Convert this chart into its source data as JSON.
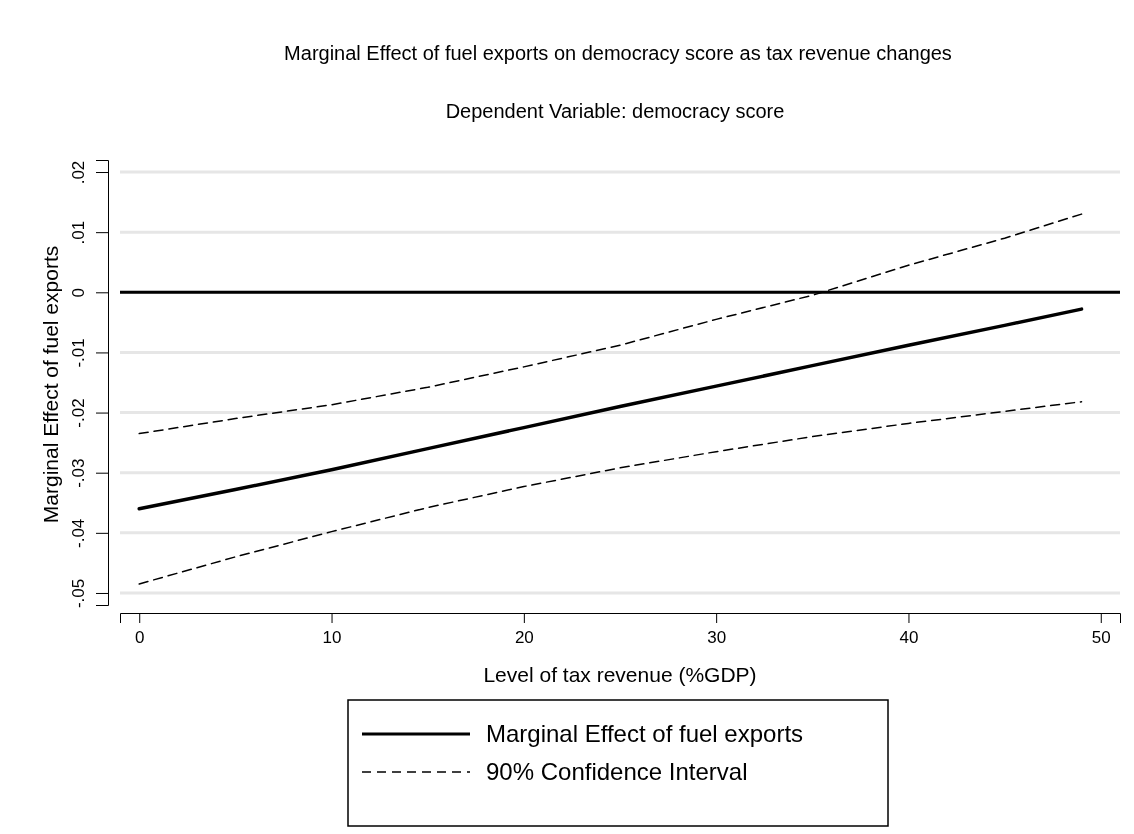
{
  "chart_data": {
    "type": "line",
    "title": "Marginal Effect of fuel exports on democracy score as tax revenue changes",
    "subtitle": "Dependent Variable: democracy score",
    "xlabel": "Level of tax revenue (%GDP)",
    "ylabel": "Marginal Effect of fuel exports",
    "x": [
      0,
      5,
      10,
      15,
      20,
      25,
      30,
      35,
      40,
      45,
      49
    ],
    "series": [
      {
        "name": "Marginal Effect of fuel exports",
        "color": "#000000",
        "line_style": "solid",
        "values": [
          -0.036,
          -0.0328,
          -0.0295,
          -0.026,
          -0.0225,
          -0.019,
          -0.0156,
          -0.0122,
          -0.0088,
          -0.0055,
          -0.0028
        ]
      },
      {
        "name": "90% Confidence Interval",
        "color": "#000000",
        "line_style": "dashed",
        "values": [
          -0.0235,
          -0.021,
          -0.0187,
          -0.0158,
          -0.0124,
          -0.0088,
          -0.0045,
          -0.0005,
          0.0045,
          0.009,
          0.013
        ]
      },
      {
        "color": "#000000",
        "line_style": "dashed",
        "values": [
          -0.0485,
          -0.044,
          -0.0398,
          -0.0358,
          -0.0323,
          -0.0292,
          -0.0265,
          -0.024,
          -0.0218,
          -0.0198,
          -0.0182
        ]
      }
    ],
    "xlim": [
      -1,
      51
    ],
    "xticks": [
      0,
      10,
      20,
      30,
      40,
      50
    ],
    "ylim": [
      -0.052,
      0.022
    ],
    "yticks": [
      {
        "value": -0.05,
        "label": "-.05"
      },
      {
        "value": -0.04,
        "label": "-.04"
      },
      {
        "value": -0.03,
        "label": "-.03"
      },
      {
        "value": -0.02,
        "label": "-.02"
      },
      {
        "value": -0.01,
        "label": "-.01"
      },
      0,
      {
        "value": 0.01,
        "label": ".01"
      },
      {
        "value": 0.02,
        "label": ".02"
      }
    ],
    "ref_lines": [
      {
        "axis": "y",
        "value": 0,
        "color": "#000000",
        "line_style": "solid"
      }
    ],
    "grid": "y",
    "legend": "bottom",
    "marker": "none"
  }
}
